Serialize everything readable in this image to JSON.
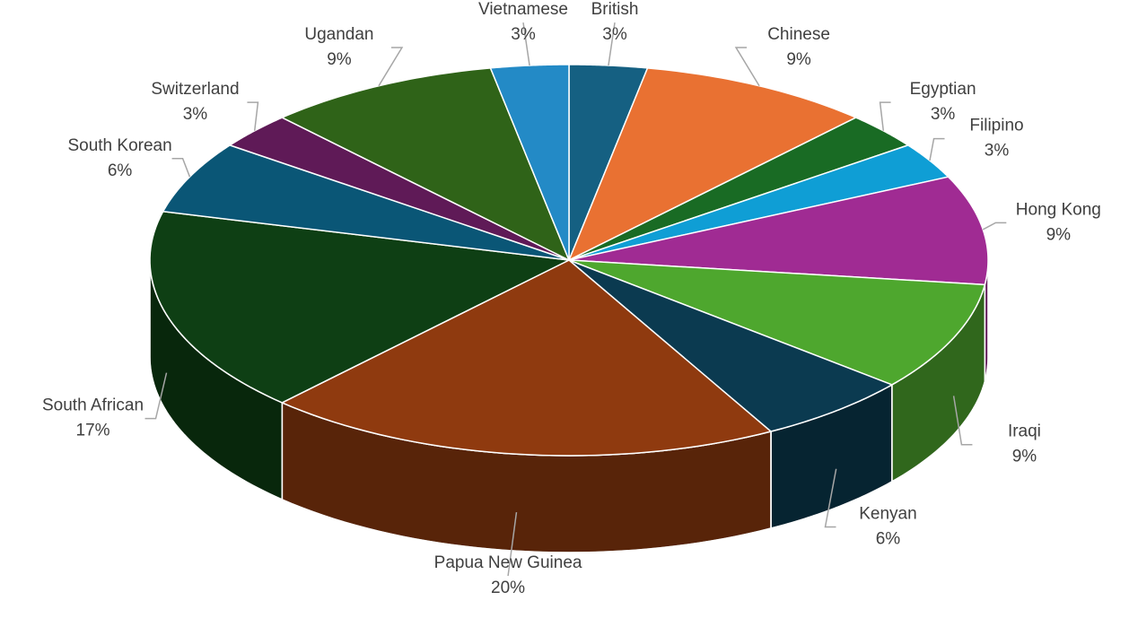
{
  "chart_data": {
    "type": "pie3d",
    "categories": [
      "British",
      "Chinese",
      "Egyptian",
      "Filipino",
      "Hong Kong",
      "Iraqi",
      "Kenyan",
      "Papua New Guinea",
      "South African",
      "South Korean",
      "Switzerland",
      "Ugandan",
      "Vietnamese"
    ],
    "values": [
      3,
      9,
      3,
      3,
      9,
      9,
      6,
      20,
      17,
      6,
      3,
      9,
      3
    ],
    "value_labels": [
      "3%",
      "9%",
      "3%",
      "3%",
      "9%",
      "9%",
      "6%",
      "20%",
      "17%",
      "6%",
      "3%",
      "9%",
      "3%"
    ],
    "colors": [
      "#156082",
      "#e97132",
      "#196b24",
      "#0f9ed5",
      "#a02b93",
      "#4ea72e",
      "#0b3a50",
      "#8f3a0f",
      "#0e3f14",
      "#0a5676",
      "#5f1a57",
      "#2f6318",
      "#238ac6"
    ]
  }
}
